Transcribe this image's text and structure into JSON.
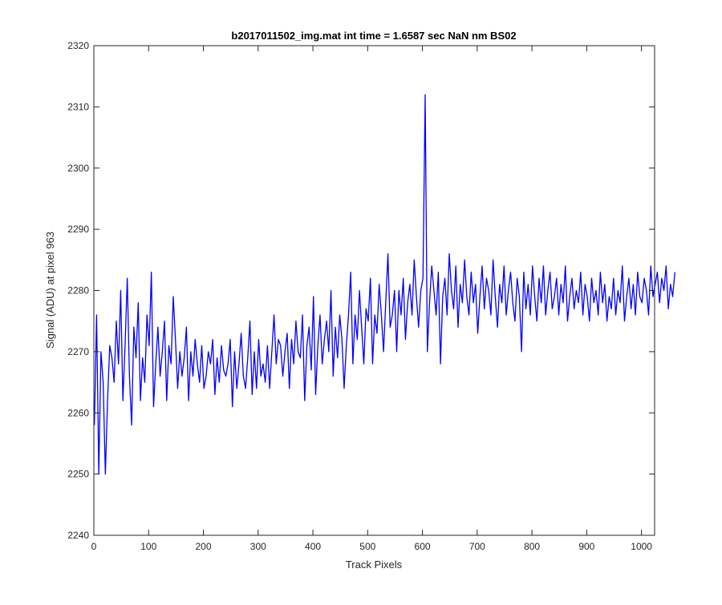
{
  "figure": {
    "background": "#ffffff"
  },
  "chart_data": {
    "type": "line",
    "title": "b2017011502_img.mat int time = 1.6587 sec  NaN nm BS02",
    "xlabel": "Track Pixels",
    "ylabel": "Signal (ADU) at pixel 963",
    "xlim": [
      0,
      1024
    ],
    "ylim": [
      2240,
      2320
    ],
    "xticks": [
      0,
      100,
      200,
      300,
      400,
      500,
      600,
      700,
      800,
      900,
      1000
    ],
    "yticks": [
      2240,
      2250,
      2260,
      2270,
      2280,
      2290,
      2300,
      2310,
      2320
    ],
    "grid": false,
    "line_color": "#0000ff",
    "series": [
      {
        "x_start": 1,
        "x_step": 4,
        "values": [
          2258,
          2276,
          2250,
          2270,
          2265,
          2250,
          2262,
          2271,
          2269,
          2265,
          2275,
          2268,
          2280,
          2262,
          2271,
          2282,
          2266,
          2258,
          2274,
          2269,
          2278,
          2262,
          2269,
          2265,
          2276,
          2271,
          2283,
          2261,
          2268,
          2274,
          2266,
          2270,
          2275,
          2262,
          2271,
          2268,
          2279,
          2272,
          2264,
          2270,
          2266,
          2269,
          2274,
          2262,
          2270,
          2266,
          2272,
          2268,
          2265,
          2271,
          2264,
          2266,
          2270,
          2268,
          2272,
          2263,
          2269,
          2265,
          2271,
          2267,
          2266,
          2268,
          2272,
          2261,
          2270,
          2264,
          2268,
          2273,
          2266,
          2264,
          2269,
          2275,
          2263,
          2270,
          2264,
          2272,
          2266,
          2268,
          2265,
          2271,
          2264,
          2270,
          2276,
          2268,
          2272,
          2271,
          2266,
          2270,
          2273,
          2264,
          2272,
          2268,
          2275,
          2270,
          2269,
          2276,
          2262,
          2271,
          2274,
          2267,
          2279,
          2263,
          2271,
          2276,
          2268,
          2272,
          2275,
          2270,
          2280,
          2266,
          2274,
          2269,
          2276,
          2272,
          2264,
          2271,
          2276,
          2283,
          2268,
          2276,
          2272,
          2280,
          2274,
          2268,
          2277,
          2275,
          2282,
          2268,
          2276,
          2273,
          2281,
          2276,
          2270,
          2278,
          2286,
          2274,
          2276,
          2280,
          2270,
          2280,
          2276,
          2282,
          2272,
          2278,
          2281,
          2276,
          2285,
          2279,
          2274,
          2280,
          2282,
          2312,
          2270,
          2278,
          2284,
          2280,
          2276,
          2283,
          2268,
          2279,
          2282,
          2276,
          2286,
          2280,
          2277,
          2284,
          2274,
          2281,
          2278,
          2285,
          2279,
          2276,
          2283,
          2278,
          2281,
          2273,
          2279,
          2284,
          2277,
          2282,
          2280,
          2276,
          2285,
          2279,
          2274,
          2281,
          2278,
          2284,
          2276,
          2280,
          2283,
          2278,
          2275,
          2282,
          2279,
          2270,
          2283,
          2277,
          2281,
          2276,
          2284,
          2279,
          2275,
          2282,
          2278,
          2284,
          2276,
          2280,
          2283,
          2277,
          2279,
          2282,
          2276,
          2281,
          2278,
          2284,
          2275,
          2279,
          2282,
          2277,
          2280,
          2278,
          2283,
          2276,
          2281,
          2279,
          2275,
          2282,
          2278,
          2280,
          2276,
          2283,
          2278,
          2281,
          2275,
          2279,
          2277,
          2282,
          2276,
          2280,
          2278,
          2284,
          2275,
          2279,
          2282,
          2277,
          2281,
          2276,
          2283,
          2279,
          2278,
          2282,
          2280,
          2276,
          2284,
          2279,
          2281,
          2283,
          2278,
          2282,
          2280,
          2284,
          2277,
          2281,
          2279,
          2283
        ]
      }
    ]
  }
}
